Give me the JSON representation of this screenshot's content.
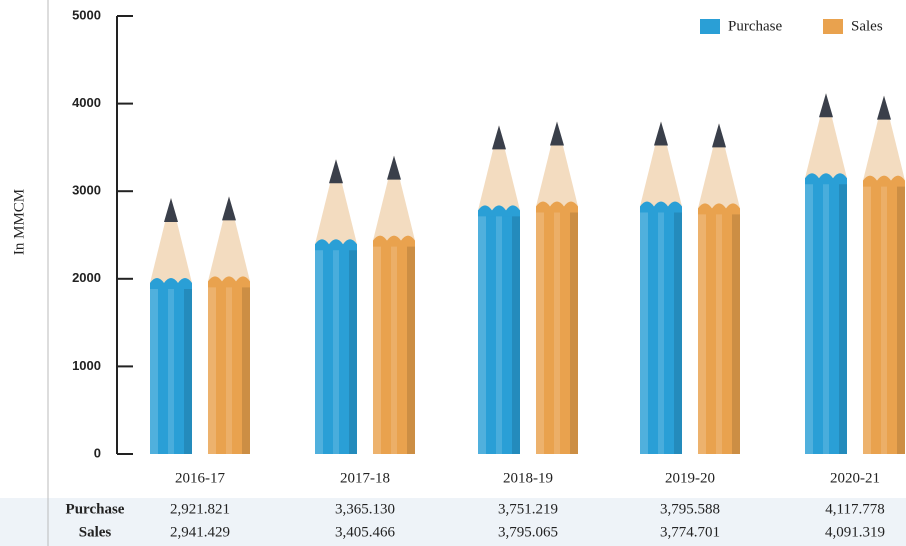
{
  "chart_data": {
    "type": "pencil-bar",
    "y_axis_label": "In MMCM",
    "categories": [
      "2016-17",
      "2017-18",
      "2018-19",
      "2019-20",
      "2020-21"
    ],
    "series": [
      {
        "name": "Purchase",
        "color": "#2a9fd6",
        "values": [
          2921.821,
          3365.13,
          3751.219,
          3795.588,
          4117.778
        ],
        "value_labels": [
          "2,921.821",
          "3,365.130",
          "3,751.219",
          "3,795.588",
          "4,117.778"
        ]
      },
      {
        "name": "Sales",
        "color": "#e9a24e",
        "values": [
          2941.429,
          3405.466,
          3795.065,
          3774.701,
          4091.319
        ],
        "value_labels": [
          "2,941.429",
          "3,405.466",
          "3,795.065",
          "3,774.701",
          "4,091.319"
        ]
      }
    ],
    "ylim": [
      0,
      5000
    ],
    "yticks": [
      0,
      1000,
      2000,
      3000,
      4000,
      5000
    ],
    "legend": "top-right"
  }
}
